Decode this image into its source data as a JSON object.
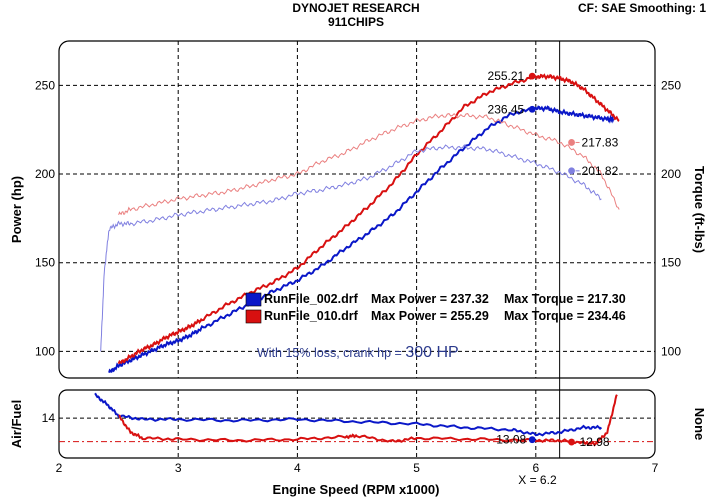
{
  "header": {
    "title": "DYNOJET RESEARCH",
    "subtitle": "911CHIPS",
    "correction": "CF: SAE  Smoothing: 1"
  },
  "chart_data": {
    "type": "line",
    "x_label": "Engine Speed (RPM x1000)",
    "x_ticks": [
      2,
      3,
      4,
      5,
      6,
      7
    ],
    "x_range": [
      2,
      7
    ],
    "main": {
      "y_left_label": "Power (hp)",
      "y_right_label": "Torque (ft-lbs)",
      "y_ticks_left": [
        100,
        150,
        200,
        250
      ],
      "y_ticks_right": [
        100,
        150,
        200,
        250
      ],
      "y_range": [
        85,
        275
      ]
    },
    "af": {
      "y_left_label": "Air/Fuel",
      "y_right_label": "None",
      "y_ticks_left": [
        14
      ],
      "y_range": [
        12.3,
        15.2
      ],
      "reference_line": 13.0
    },
    "cursor": {
      "x": 6.2,
      "label": "X = 6.2"
    },
    "colors": {
      "run1": "#0a17c8",
      "run1_light": "#8080e0",
      "run2": "#d81010",
      "run2_light": "#ea8080"
    },
    "legend": [
      {
        "file": "RunFile_002.drf",
        "max_power_label": "Max Power = 237.32",
        "max_torque_label": "Max Torque = 217.30",
        "color": "#0a17c8"
      },
      {
        "file": "RunFile_010.drf",
        "max_power_label": "Max Power = 255.29",
        "max_torque_label": "Max Torque = 234.46",
        "color": "#d81010"
      }
    ],
    "note": {
      "prefix": "With 15% loss, crank hp = ",
      "value": "300 HP"
    },
    "annotations": [
      {
        "text": "255.21",
        "x": 5.97,
        "y": 255.2,
        "series": "run2_power"
      },
      {
        "text": "236.45",
        "x": 5.97,
        "y": 236.5,
        "series": "run1_power"
      },
      {
        "text": "217.83",
        "x": 6.3,
        "y": 217.8,
        "series": "run2_torque"
      },
      {
        "text": "201.82",
        "x": 6.3,
        "y": 201.8,
        "series": "run1_torque"
      },
      {
        "text": "13.08",
        "x": 5.97,
        "y": 13.08,
        "series": "run1_af"
      },
      {
        "text": "12.98",
        "x": 6.3,
        "y": 12.98,
        "series": "run2_af"
      }
    ],
    "series": [
      {
        "name": "RunFile_002.drf",
        "measure": "power",
        "color_key": "run1",
        "x": [
          2.42,
          2.5,
          2.6,
          2.7,
          2.8,
          2.9,
          3.0,
          3.1,
          3.2,
          3.4,
          3.6,
          3.8,
          4.0,
          4.2,
          4.4,
          4.6,
          4.8,
          5.0,
          5.2,
          5.4,
          5.6,
          5.8,
          6.0,
          6.1,
          6.2,
          6.3,
          6.4,
          6.5,
          6.6,
          6.65
        ],
        "y": [
          88,
          92,
          95,
          98,
          101,
          104,
          106,
          109,
          113,
          120,
          127,
          134,
          140,
          148,
          158,
          167,
          177,
          190,
          203,
          215,
          226,
          234,
          237,
          237,
          235,
          234,
          233,
          232,
          231,
          231
        ]
      },
      {
        "name": "RunFile_010.drf",
        "measure": "power",
        "color_key": "run2",
        "x": [
          2.5,
          2.6,
          2.7,
          2.8,
          2.9,
          3.0,
          3.1,
          3.2,
          3.4,
          3.6,
          3.8,
          4.0,
          4.2,
          4.4,
          4.6,
          4.8,
          5.0,
          5.2,
          5.4,
          5.6,
          5.8,
          6.0,
          6.1,
          6.2,
          6.3,
          6.4,
          6.5,
          6.6,
          6.7
        ],
        "y": [
          93,
          97,
          101,
          104,
          108,
          111,
          114,
          118,
          126,
          133,
          139,
          147,
          159,
          170,
          182,
          195,
          211,
          224,
          238,
          246,
          251,
          255,
          255,
          254,
          252,
          248,
          242,
          236,
          230
        ]
      },
      {
        "name": "RunFile_002.drf",
        "measure": "torque",
        "color_key": "run1_light",
        "x": [
          2.35,
          2.38,
          2.42,
          2.5,
          2.6,
          2.8,
          3.0,
          3.2,
          3.4,
          3.6,
          3.8,
          4.0,
          4.2,
          4.4,
          4.6,
          4.8,
          5.0,
          5.2,
          5.4,
          5.6,
          5.8,
          6.0,
          6.2,
          6.4,
          6.55
        ],
        "y": [
          100,
          145,
          169,
          172,
          172,
          174,
          177,
          179,
          181,
          183,
          185,
          189,
          191,
          194,
          198,
          205,
          213,
          215,
          215,
          214,
          210,
          206,
          201,
          194,
          186
        ]
      },
      {
        "name": "RunFile_010.drf",
        "measure": "torque",
        "color_key": "run2_light",
        "x": [
          2.5,
          2.6,
          2.8,
          3.0,
          3.2,
          3.4,
          3.6,
          3.8,
          4.0,
          4.2,
          4.4,
          4.6,
          4.8,
          5.0,
          5.2,
          5.4,
          5.6,
          5.8,
          6.0,
          6.2,
          6.4,
          6.55,
          6.7
        ],
        "y": [
          177,
          180,
          183,
          186,
          188,
          190,
          193,
          197,
          200,
          207,
          212,
          219,
          225,
          230,
          233,
          233,
          232,
          227,
          222,
          218,
          210,
          200,
          180
        ]
      },
      {
        "name": "RunFile_002.drf",
        "measure": "air_fuel",
        "color_key": "run1",
        "x": [
          2.3,
          2.4,
          2.5,
          2.7,
          3.0,
          3.5,
          4.0,
          4.5,
          5.0,
          5.4,
          5.8,
          6.0,
          6.2,
          6.4,
          6.55
        ],
        "y": [
          15.0,
          14.6,
          14.1,
          13.95,
          13.95,
          13.9,
          13.95,
          13.85,
          13.75,
          13.6,
          13.5,
          13.3,
          13.4,
          13.6,
          13.6
        ]
      },
      {
        "name": "RunFile_010.drf",
        "measure": "air_fuel",
        "color_key": "run2",
        "x": [
          2.5,
          2.6,
          2.7,
          3.0,
          3.5,
          4.0,
          4.4,
          4.5,
          4.8,
          5.0,
          5.5,
          6.0,
          6.2,
          6.4,
          6.5,
          6.6,
          6.68
        ],
        "y": [
          14.1,
          13.4,
          13.15,
          13.1,
          13.05,
          13.1,
          13.2,
          13.25,
          13.0,
          13.15,
          13.1,
          13.05,
          13.05,
          12.95,
          12.9,
          13.4,
          15.0
        ]
      }
    ]
  }
}
